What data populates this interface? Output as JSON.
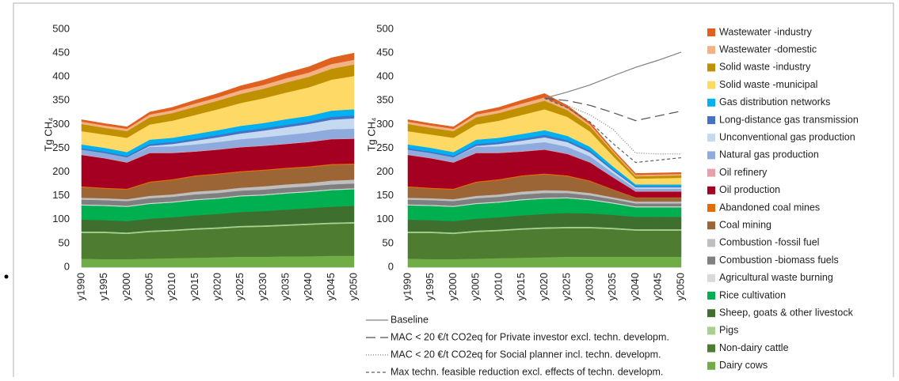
{
  "chart_data": [
    {
      "type": "area",
      "y_label": "Tg CH₄",
      "categories": [
        "y1990",
        "y1995",
        "y2000",
        "y2005",
        "y2010",
        "y2015",
        "y2020",
        "y2025",
        "y2030",
        "y2035",
        "y2040",
        "y2045",
        "y2050"
      ],
      "ylim": [
        0,
        500
      ],
      "yticks": [
        0,
        50,
        100,
        150,
        200,
        250,
        300,
        350,
        400,
        450,
        500
      ],
      "series": [
        {
          "color": "#70ad47",
          "values": [
            18,
            17,
            17,
            18,
            19,
            20,
            21,
            22,
            22,
            23,
            23,
            24,
            24
          ]
        },
        {
          "color": "#4e7d32",
          "values": [
            54,
            55,
            53,
            56,
            57,
            59,
            60,
            62,
            63,
            64,
            66,
            67,
            68
          ]
        },
        {
          "color": "#a9d18e",
          "values": [
            3,
            3,
            3,
            3,
            3,
            3,
            3,
            3,
            3,
            3,
            3,
            3,
            3
          ]
        },
        {
          "color": "#3f6f2f",
          "values": [
            25,
            24,
            24,
            25,
            26,
            27,
            28,
            29,
            30,
            31,
            32,
            33,
            34
          ]
        },
        {
          "color": "#00b050",
          "values": [
            30,
            30,
            30,
            31,
            31,
            32,
            32,
            33,
            33,
            34,
            34,
            35,
            35
          ]
        },
        {
          "color": "#d9d9d9",
          "values": [
            2,
            2,
            2,
            2,
            2,
            2,
            2,
            2,
            2,
            2,
            2,
            2,
            2
          ]
        },
        {
          "color": "#7f7f7f",
          "values": [
            10,
            10,
            10,
            10,
            10,
            10,
            10,
            10,
            10,
            10,
            10,
            10,
            10
          ]
        },
        {
          "color": "#bfbfbf",
          "values": [
            4,
            4,
            4,
            5,
            5,
            6,
            6,
            6,
            7,
            7,
            7,
            8,
            8
          ]
        },
        {
          "color": "#9c6535",
          "values": [
            22,
            20,
            20,
            28,
            30,
            32,
            33,
            33,
            33,
            33,
            33,
            33,
            32
          ]
        },
        {
          "color": "#e36c09",
          "values": [
            2,
            2,
            2,
            2,
            2,
            2,
            2,
            2,
            2,
            2,
            2,
            2,
            2
          ]
        },
        {
          "color": "#a50021",
          "values": [
            66,
            62,
            55,
            60,
            55,
            50,
            50,
            50,
            50,
            50,
            51,
            52,
            52
          ]
        },
        {
          "color": "#e8a0a8",
          "values": [
            1,
            1,
            1,
            1,
            1,
            1,
            1,
            1,
            1,
            1,
            1,
            1,
            1
          ]
        },
        {
          "color": "#8faadc",
          "values": [
            10,
            10,
            10,
            12,
            13,
            14,
            15,
            16,
            17,
            18,
            19,
            20,
            20
          ]
        },
        {
          "color": "#c5d9f1",
          "values": [
            0,
            0,
            0,
            2,
            5,
            8,
            10,
            12,
            14,
            16,
            18,
            20,
            22
          ]
        },
        {
          "color": "#4472c4",
          "values": [
            3,
            3,
            3,
            4,
            4,
            4,
            5,
            5,
            5,
            5,
            5,
            6,
            6
          ]
        },
        {
          "color": "#00b0f0",
          "values": [
            8,
            8,
            8,
            9,
            9,
            10,
            10,
            11,
            11,
            12,
            12,
            13,
            13
          ]
        },
        {
          "color": "#ffd966",
          "values": [
            28,
            28,
            30,
            32,
            36,
            40,
            44,
            48,
            52,
            56,
            60,
            65,
            70
          ]
        },
        {
          "color": "#bf9000",
          "values": [
            15,
            14,
            14,
            15,
            16,
            17,
            18,
            19,
            20,
            21,
            22,
            23,
            24
          ]
        },
        {
          "color": "#f4b183",
          "values": [
            5,
            5,
            5,
            6,
            6,
            7,
            7,
            8,
            8,
            9,
            9,
            10,
            10
          ]
        },
        {
          "color": "#e06020",
          "values": [
            4,
            4,
            4,
            5,
            6,
            7,
            8,
            9,
            10,
            11,
            12,
            13,
            14
          ]
        }
      ]
    },
    {
      "type": "area",
      "y_label": "Tg CH₄",
      "categories": [
        "y1990",
        "y1995",
        "y2000",
        "y2005",
        "y2010",
        "y2015",
        "y2020",
        "y2025",
        "y2030",
        "y2035",
        "y2040",
        "y2045",
        "y2050"
      ],
      "ylim": [
        0,
        500
      ],
      "yticks": [
        0,
        50,
        100,
        150,
        200,
        250,
        300,
        350,
        400,
        450,
        500
      ],
      "series": [
        {
          "name": "Dairy cows",
          "color": "#70ad47",
          "values": [
            18,
            17,
            17,
            18,
            19,
            20,
            21,
            22,
            22,
            22,
            22,
            22,
            22
          ]
        },
        {
          "name": "Non-dairy cattle",
          "color": "#4e7d32",
          "values": [
            54,
            55,
            53,
            56,
            57,
            59,
            60,
            60,
            60,
            58,
            55,
            55,
            55
          ]
        },
        {
          "name": "Pigs",
          "color": "#a9d18e",
          "values": [
            3,
            3,
            3,
            3,
            3,
            3,
            3,
            3,
            3,
            3,
            3,
            3,
            3
          ]
        },
        {
          "name": "Sheep, goats & other livestock",
          "color": "#3f6f2f",
          "values": [
            25,
            24,
            24,
            25,
            26,
            27,
            28,
            29,
            28,
            27,
            26,
            26,
            26
          ]
        },
        {
          "name": "Rice cultivation",
          "color": "#00b050",
          "values": [
            30,
            30,
            30,
            31,
            31,
            32,
            32,
            31,
            28,
            24,
            20,
            20,
            20
          ]
        },
        {
          "name": "Agricultural waste burning",
          "color": "#d9d9d9",
          "values": [
            2,
            2,
            2,
            2,
            2,
            2,
            2,
            2,
            2,
            2,
            2,
            2,
            2
          ]
        },
        {
          "name": "Combustion -biomass fuels",
          "color": "#7f7f7f",
          "values": [
            10,
            10,
            10,
            10,
            10,
            10,
            10,
            9,
            8,
            7,
            6,
            6,
            6
          ]
        },
        {
          "name": "Combustion -fossil fuel",
          "color": "#bfbfbf",
          "values": [
            4,
            4,
            4,
            5,
            5,
            6,
            6,
            5,
            5,
            4,
            4,
            4,
            4
          ]
        },
        {
          "name": "Coal mining",
          "color": "#9c6535",
          "values": [
            22,
            20,
            20,
            28,
            30,
            32,
            33,
            30,
            24,
            16,
            8,
            8,
            8
          ]
        },
        {
          "name": "Abandoned coal mines",
          "color": "#e36c09",
          "values": [
            2,
            2,
            2,
            2,
            2,
            2,
            2,
            2,
            2,
            1,
            1,
            1,
            1
          ]
        },
        {
          "name": "Oil production",
          "color": "#a50021",
          "values": [
            66,
            62,
            55,
            60,
            55,
            50,
            50,
            45,
            38,
            25,
            12,
            12,
            12
          ]
        },
        {
          "name": "Oil refinery",
          "color": "#e8a0a8",
          "values": [
            1,
            1,
            1,
            1,
            1,
            1,
            1,
            1,
            1,
            1,
            1,
            1,
            1
          ]
        },
        {
          "name": "Natural gas production",
          "color": "#8faadc",
          "values": [
            10,
            10,
            10,
            12,
            13,
            14,
            15,
            14,
            12,
            8,
            5,
            5,
            5
          ]
        },
        {
          "name": "Unconventional gas production",
          "color": "#c5d9f1",
          "values": [
            0,
            0,
            0,
            2,
            5,
            8,
            10,
            10,
            8,
            5,
            3,
            3,
            3
          ]
        },
        {
          "name": "Long-distance gas transmission",
          "color": "#4472c4",
          "values": [
            3,
            3,
            3,
            4,
            4,
            4,
            5,
            4,
            4,
            3,
            2,
            2,
            2
          ]
        },
        {
          "name": "Gas distribution networks",
          "color": "#00b0f0",
          "values": [
            8,
            8,
            8,
            9,
            9,
            10,
            10,
            9,
            8,
            6,
            4,
            4,
            4
          ]
        },
        {
          "name": "Solid waste -municipal",
          "color": "#ffd966",
          "values": [
            28,
            28,
            30,
            32,
            36,
            40,
            44,
            40,
            32,
            22,
            12,
            13,
            14
          ]
        },
        {
          "name": "Solid waste -industry",
          "color": "#bf9000",
          "values": [
            15,
            14,
            14,
            15,
            16,
            17,
            18,
            14,
            11,
            8,
            5,
            5,
            5
          ]
        },
        {
          "name": "Wastewater -domestic",
          "color": "#f4b183",
          "values": [
            5,
            5,
            5,
            6,
            6,
            7,
            7,
            5,
            4,
            3,
            3,
            3,
            3
          ]
        },
        {
          "name": "Wastewater -industry",
          "color": "#e06020",
          "values": [
            4,
            4,
            4,
            5,
            6,
            7,
            8,
            5,
            4,
            3,
            3,
            3,
            3
          ]
        }
      ],
      "line_series": [
        {
          "name": "Baseline",
          "color": "#808080",
          "dash": "none",
          "values": [
            null,
            null,
            null,
            null,
            null,
            null,
            355,
            368,
            383,
            402,
            420,
            435,
            452
          ]
        },
        {
          "name": "MAC < 20 €/t CO2eq for Private investor excl. techn. developm.",
          "color": "#505050",
          "dash": "12 6",
          "values": [
            null,
            null,
            null,
            null,
            null,
            null,
            355,
            350,
            340,
            325,
            308,
            318,
            328
          ]
        },
        {
          "name": "MAC < 20 €/t CO2eq for Social planner incl. techn. developm.",
          "color": "#808080",
          "dash": "1 2",
          "values": [
            null,
            null,
            null,
            null,
            null,
            null,
            355,
            340,
            320,
            290,
            240,
            238,
            238
          ]
        },
        {
          "name": "Max techn. feasible reduction excl. effects of techn. developm.",
          "color": "#606060",
          "dash": "4 3",
          "values": [
            null,
            null,
            null,
            null,
            null,
            null,
            355,
            335,
            305,
            260,
            220,
            225,
            230
          ]
        }
      ]
    }
  ]
}
